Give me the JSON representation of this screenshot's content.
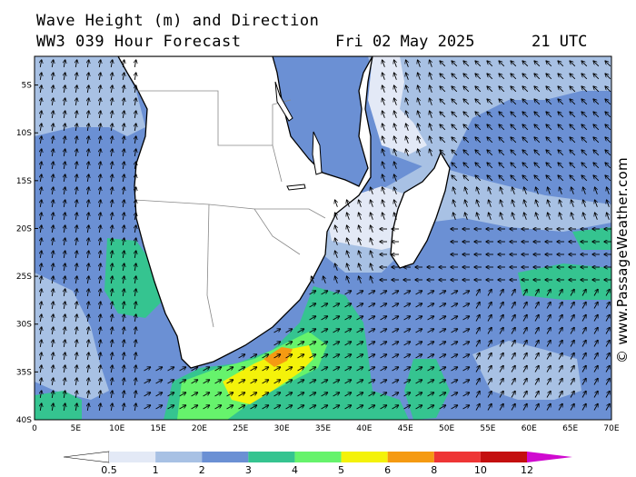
{
  "title": {
    "line1": "Wave Height (m) and Direction",
    "line2": "WW3 039 Hour Forecast",
    "date": "Fri 02 May 2025",
    "time": "21 UTC"
  },
  "brand": "© www.PassageWeather.com",
  "map": {
    "lat_labels": [
      "5S",
      "10S",
      "15S",
      "20S",
      "25S",
      "30S",
      "35S",
      "40S"
    ],
    "lon_labels": [
      "0",
      "5E",
      "10E",
      "15E",
      "20E",
      "25E",
      "30E",
      "35E",
      "40E",
      "45E",
      "50E",
      "55E",
      "60E",
      "65E",
      "70E"
    ],
    "extent": {
      "lon_min": 0,
      "lon_max": 70,
      "lat_min": -40,
      "lat_max": -2
    }
  },
  "legend": {
    "ticks": [
      "0.5",
      "1",
      "2",
      "3",
      "4",
      "5",
      "6",
      "8",
      "10",
      "12"
    ],
    "colors": [
      "#ffffff",
      "#e3e9f6",
      "#a8c1e4",
      "#6b90d4",
      "#35c490",
      "#66f36c",
      "#f4f20a",
      "#f59a12",
      "#ee3535",
      "#c40f0f",
      "#d00ad0"
    ]
  }
}
